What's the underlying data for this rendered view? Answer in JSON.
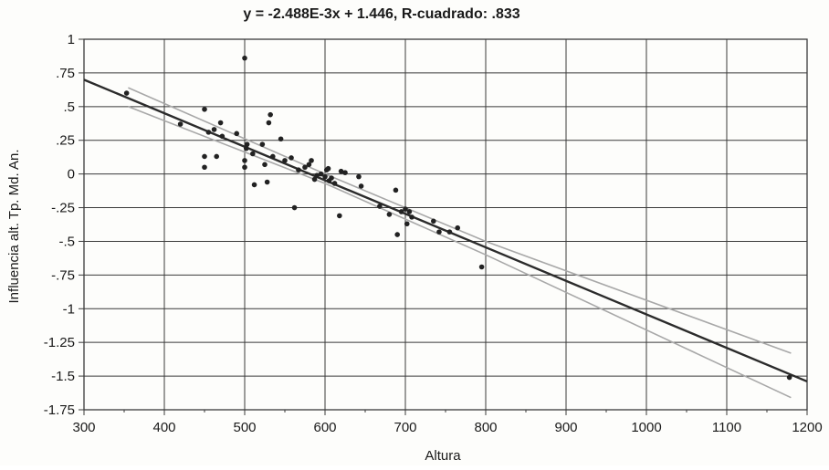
{
  "chart_data": {
    "type": "scatter",
    "title": "y = -2.488E-3x + 1.446, R-cuadrado: .833",
    "xlabel": "Altura",
    "ylabel": "Influencia alt. Tp. Md. An.",
    "xlim": [
      300,
      1200
    ],
    "ylim": [
      -1.75,
      1
    ],
    "grid": true,
    "x_ticks": [
      300,
      400,
      500,
      600,
      700,
      800,
      900,
      1000,
      1100,
      1200
    ],
    "x_tick_labels": [
      "300",
      "400",
      "500",
      "600",
      "700",
      "800",
      "900",
      "1000",
      "1100",
      "1200"
    ],
    "y_ticks": [
      1,
      0.75,
      0.5,
      0.25,
      0,
      -0.25,
      -0.5,
      -0.75,
      -1,
      -1.25,
      -1.5,
      -1.75
    ],
    "y_tick_labels": [
      "1",
      ".75",
      ".5",
      ".25",
      "0",
      "-.25",
      "-.5",
      "-.75",
      "-1",
      "-1.25",
      "-1.5",
      "-1.75"
    ],
    "regression": {
      "slope": -0.002488,
      "intercept": 1.446,
      "x_range": [
        300,
        1200
      ]
    },
    "confidence_band": {
      "upper": [
        [
          355,
          0.64
        ],
        [
          600,
          0.0
        ],
        [
          800,
          -0.5
        ],
        [
          1180,
          -1.33
        ]
      ],
      "lower": [
        [
          355,
          0.5
        ],
        [
          600,
          -0.07
        ],
        [
          800,
          -0.6
        ],
        [
          1180,
          -1.66
        ]
      ]
    },
    "points": [
      [
        353,
        0.6
      ],
      [
        420,
        0.37
      ],
      [
        450,
        0.48
      ],
      [
        450,
        0.13
      ],
      [
        450,
        0.05
      ],
      [
        455,
        0.31
      ],
      [
        462,
        0.33
      ],
      [
        465,
        0.13
      ],
      [
        470,
        0.38
      ],
      [
        472,
        0.28
      ],
      [
        490,
        0.3
      ],
      [
        500,
        0.86
      ],
      [
        500,
        0.1
      ],
      [
        500,
        0.05
      ],
      [
        502,
        0.19
      ],
      [
        503,
        0.22
      ],
      [
        510,
        0.15
      ],
      [
        512,
        -0.08
      ],
      [
        522,
        0.22
      ],
      [
        525,
        0.07
      ],
      [
        528,
        -0.06
      ],
      [
        530,
        0.38
      ],
      [
        532,
        0.44
      ],
      [
        535,
        0.13
      ],
      [
        545,
        0.26
      ],
      [
        550,
        0.1
      ],
      [
        558,
        0.12
      ],
      [
        562,
        -0.25
      ],
      [
        567,
        0.03
      ],
      [
        575,
        0.05
      ],
      [
        580,
        0.07
      ],
      [
        583,
        0.1
      ],
      [
        587,
        -0.04
      ],
      [
        590,
        -0.01
      ],
      [
        595,
        0.0
      ],
      [
        600,
        -0.02
      ],
      [
        602,
        0.03
      ],
      [
        604,
        0.04
      ],
      [
        605,
        -0.05
      ],
      [
        608,
        -0.03
      ],
      [
        612,
        -0.07
      ],
      [
        618,
        -0.31
      ],
      [
        620,
        0.02
      ],
      [
        625,
        0.01
      ],
      [
        642,
        -0.02
      ],
      [
        645,
        -0.09
      ],
      [
        668,
        -0.24
      ],
      [
        680,
        -0.3
      ],
      [
        688,
        -0.12
      ],
      [
        690,
        -0.45
      ],
      [
        695,
        -0.28
      ],
      [
        700,
        -0.26
      ],
      [
        702,
        -0.37
      ],
      [
        705,
        -0.28
      ],
      [
        708,
        -0.32
      ],
      [
        735,
        -0.35
      ],
      [
        742,
        -0.43
      ],
      [
        755,
        -0.43
      ],
      [
        765,
        -0.4
      ],
      [
        795,
        -0.69
      ],
      [
        1178,
        -1.51
      ]
    ],
    "colors": {
      "regression": "#2b2b2b",
      "band": "#a8a8a8",
      "grid": "#3a3a3a",
      "points": "#222222"
    }
  }
}
